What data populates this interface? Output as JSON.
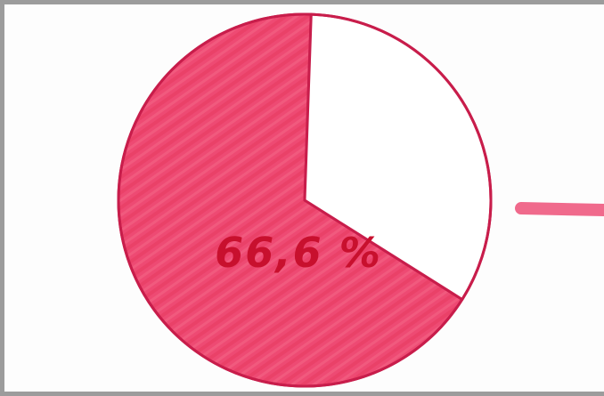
{
  "chart_data": {
    "type": "pie",
    "slices": [
      {
        "value": 66.6,
        "color": "#ee4a73"
      },
      {
        "value": 33.4,
        "color": "#ffffff"
      }
    ],
    "data_label": "66,6 %",
    "title": "",
    "legend": "none"
  },
  "colors": {
    "fill": "#ee4a73",
    "fill_dark": "#e23a5f",
    "outline": "#c81d4b",
    "marker_stroke": "#f06a8c",
    "label": "#c8102e",
    "frame": "#9c9c9c"
  }
}
